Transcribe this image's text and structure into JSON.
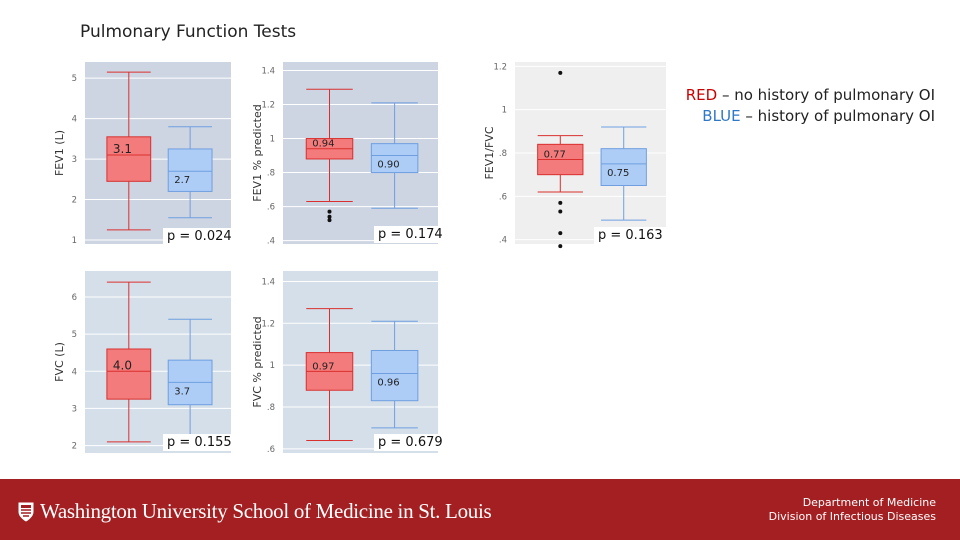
{
  "title": "Pulmonary Function Tests",
  "legend": {
    "red_label": "RED",
    "red_text": " – no history of pulmonary OI",
    "blue_label": "BLUE",
    "blue_text": " – history of pulmonary OI"
  },
  "colors": {
    "red_fill": "#f47b7b",
    "red_line": "#d9302f",
    "blue_fill": "#adcdf7",
    "blue_line": "#6f9fe0",
    "panel_bg": "#cfd6e3",
    "footer_bg": "#a31f22"
  },
  "chart_data": [
    {
      "type": "box",
      "ylabel": "FEV1 (L)",
      "ylim": [
        0.9,
        5.4
      ],
      "yticks": [
        "1",
        "2",
        "3",
        "4",
        "5"
      ],
      "ytick_values": [
        1,
        2,
        3,
        4,
        5
      ],
      "p_value": "p = 0.024",
      "series": [
        {
          "color": "red",
          "min": 1.25,
          "q1": 2.45,
          "median": 3.1,
          "q3": 3.55,
          "max": 5.15,
          "label": "3.1",
          "outliers": []
        },
        {
          "color": "blue",
          "min": 1.55,
          "q1": 2.2,
          "median": 2.7,
          "q3": 3.25,
          "max": 3.8,
          "label": "2.7",
          "outliers": []
        }
      ]
    },
    {
      "type": "box",
      "ylabel": "FEV1 % predicted",
      "ylim": [
        0.38,
        1.45
      ],
      "yticks": [
        ".4",
        ".6",
        ".8",
        "1",
        "1.2",
        "1.4"
      ],
      "ytick_values": [
        0.4,
        0.6,
        0.8,
        1.0,
        1.2,
        1.4
      ],
      "p_value": "p = 0.174",
      "series": [
        {
          "color": "red",
          "min": 0.63,
          "q1": 0.88,
          "median": 0.94,
          "q3": 1.0,
          "max": 1.29,
          "label": "0.94",
          "outliers": [
            0.52,
            0.54,
            0.57
          ]
        },
        {
          "color": "blue",
          "min": 0.59,
          "q1": 0.8,
          "median": 0.9,
          "q3": 0.97,
          "max": 1.21,
          "label": "0.90",
          "outliers": []
        }
      ]
    },
    {
      "type": "box",
      "ylabel": "FEV1/FVC",
      "ylim": [
        0.38,
        1.22
      ],
      "yticks": [
        ".4",
        ".6",
        ".8",
        "1",
        "1.2"
      ],
      "ytick_values": [
        0.4,
        0.6,
        0.8,
        1.0,
        1.2
      ],
      "p_value": "p = 0.163",
      "series": [
        {
          "color": "red",
          "min": 0.62,
          "q1": 0.7,
          "median": 0.77,
          "q3": 0.84,
          "max": 0.88,
          "label": "0.77",
          "outliers": [
            0.37,
            0.43,
            0.53,
            0.57,
            1.17
          ]
        },
        {
          "color": "blue",
          "min": 0.49,
          "q1": 0.65,
          "median": 0.75,
          "q3": 0.82,
          "max": 0.92,
          "label": "0.75",
          "outliers": []
        }
      ]
    },
    {
      "type": "box",
      "ylabel": "FVC (L)",
      "ylim": [
        1.8,
        6.7
      ],
      "yticks": [
        "2",
        "3",
        "4",
        "5",
        "6"
      ],
      "ytick_values": [
        2,
        3,
        4,
        5,
        6
      ],
      "p_value": "p = 0.155",
      "series": [
        {
          "color": "red",
          "min": 2.1,
          "q1": 3.25,
          "median": 4.0,
          "q3": 4.6,
          "max": 6.4,
          "label": "4.0",
          "outliers": []
        },
        {
          "color": "blue",
          "min": 2.25,
          "q1": 3.1,
          "median": 3.7,
          "q3": 4.3,
          "max": 5.4,
          "label": "3.7",
          "outliers": []
        }
      ]
    },
    {
      "type": "box",
      "ylabel": "FVC % predicted",
      "ylim": [
        0.58,
        1.45
      ],
      "yticks": [
        ".6",
        ".8",
        "1",
        "1.2",
        "1.4"
      ],
      "ytick_values": [
        0.6,
        0.8,
        1.0,
        1.2,
        1.4
      ],
      "p_value": "p = 0.679",
      "series": [
        {
          "color": "red",
          "min": 0.64,
          "q1": 0.88,
          "median": 0.97,
          "q3": 1.06,
          "max": 1.27,
          "label": "0.97",
          "outliers": []
        },
        {
          "color": "blue",
          "min": 0.7,
          "q1": 0.83,
          "median": 0.96,
          "q3": 1.07,
          "max": 1.21,
          "label": "0.96",
          "outliers": []
        }
      ]
    }
  ],
  "footer": {
    "logo_text": "Washington University School of Medicine in St. Louis",
    "dept_line1": "Department of Medicine",
    "dept_line2": "Division of Infectious Diseases"
  }
}
